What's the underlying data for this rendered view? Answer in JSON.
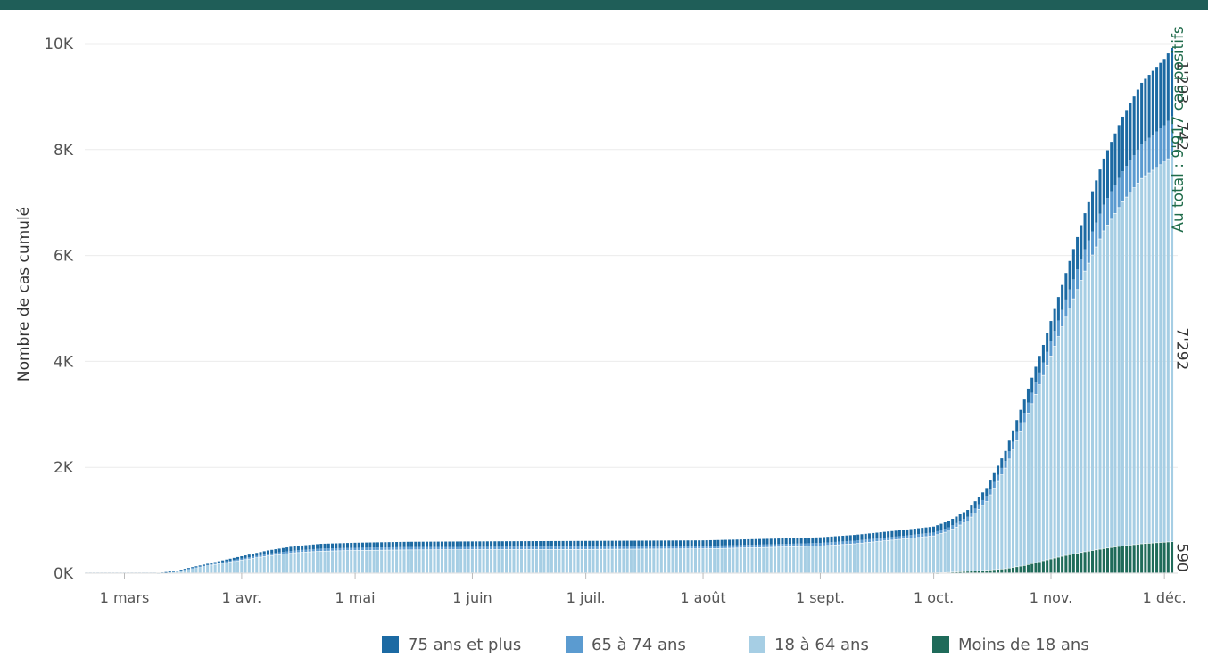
{
  "chart_data": {
    "type": "bar",
    "stacked": true,
    "ylabel": "Nombre de cas cumulé",
    "ylim": [
      0,
      10000
    ],
    "yticks": [
      0,
      2000,
      4000,
      6000,
      8000,
      10000
    ],
    "ytick_labels": [
      "0K",
      "2K",
      "4K",
      "6K",
      "8K",
      "10K"
    ],
    "x_start": "2020-02-20",
    "x_end": "2020-12-05",
    "xticks": [
      {
        "date": "2020-03-01",
        "label": "1 mars"
      },
      {
        "date": "2020-04-01",
        "label": "1 avr."
      },
      {
        "date": "2020-05-01",
        "label": "1 mai"
      },
      {
        "date": "2020-06-01",
        "label": "1 juin"
      },
      {
        "date": "2020-07-01",
        "label": "1 juil."
      },
      {
        "date": "2020-08-01",
        "label": "1 août"
      },
      {
        "date": "2020-09-01",
        "label": "1 sept."
      },
      {
        "date": "2020-10-01",
        "label": "1 oct."
      },
      {
        "date": "2020-11-01",
        "label": "1 nov."
      },
      {
        "date": "2020-12-01",
        "label": "1 déc."
      }
    ],
    "series": [
      {
        "name": "Moins de 18 ans",
        "color": "#1f6b5a",
        "key": "under18"
      },
      {
        "name": "18 à 64 ans",
        "color": "#a6cee4",
        "key": "a18_64"
      },
      {
        "name": "65 à 74 ans",
        "color": "#5b9bd0",
        "key": "a65_74"
      },
      {
        "name": "75 ans et plus",
        "color": "#1c6aa3",
        "key": "a75plus"
      }
    ],
    "anchors": [
      {
        "date": "2020-03-10",
        "under18": 0,
        "a18_64": 2,
        "a65_74": 0,
        "a75plus": 0
      },
      {
        "date": "2020-03-15",
        "under18": 0,
        "a18_64": 40,
        "a65_74": 5,
        "a75plus": 5
      },
      {
        "date": "2020-03-20",
        "under18": 0,
        "a18_64": 100,
        "a65_74": 15,
        "a75plus": 15
      },
      {
        "date": "2020-03-25",
        "under18": 0,
        "a18_64": 160,
        "a65_74": 25,
        "a75plus": 25
      },
      {
        "date": "2020-04-01",
        "under18": 0,
        "a18_64": 240,
        "a65_74": 35,
        "a75plus": 45
      },
      {
        "date": "2020-04-08",
        "under18": 0,
        "a18_64": 320,
        "a65_74": 45,
        "a75plus": 65
      },
      {
        "date": "2020-04-15",
        "under18": 0,
        "a18_64": 380,
        "a65_74": 50,
        "a75plus": 80
      },
      {
        "date": "2020-04-22",
        "under18": 0,
        "a18_64": 410,
        "a65_74": 55,
        "a75plus": 90
      },
      {
        "date": "2020-05-01",
        "under18": 0,
        "a18_64": 425,
        "a65_74": 55,
        "a75plus": 95
      },
      {
        "date": "2020-05-15",
        "under18": 0,
        "a18_64": 435,
        "a65_74": 58,
        "a75plus": 100
      },
      {
        "date": "2020-06-01",
        "under18": 0,
        "a18_64": 440,
        "a65_74": 58,
        "a75plus": 102
      },
      {
        "date": "2020-07-01",
        "under18": 0,
        "a18_64": 445,
        "a65_74": 60,
        "a75plus": 105
      },
      {
        "date": "2020-08-01",
        "under18": 0,
        "a18_64": 455,
        "a65_74": 60,
        "a75plus": 105
      },
      {
        "date": "2020-08-20",
        "under18": 0,
        "a18_64": 485,
        "a65_74": 62,
        "a75plus": 106
      },
      {
        "date": "2020-09-01",
        "under18": 0,
        "a18_64": 510,
        "a65_74": 62,
        "a75plus": 106
      },
      {
        "date": "2020-09-10",
        "under18": 0,
        "a18_64": 550,
        "a65_74": 64,
        "a75plus": 108
      },
      {
        "date": "2020-09-20",
        "under18": 0,
        "a18_64": 620,
        "a65_74": 65,
        "a75plus": 110
      },
      {
        "date": "2020-10-01",
        "under18": 0,
        "a18_64": 700,
        "a65_74": 68,
        "a75plus": 112
      },
      {
        "date": "2020-10-05",
        "under18": 10,
        "a18_64": 780,
        "a65_74": 75,
        "a75plus": 120
      },
      {
        "date": "2020-10-10",
        "under18": 30,
        "a18_64": 950,
        "a65_74": 85,
        "a75plus": 130
      },
      {
        "date": "2020-10-15",
        "under18": 50,
        "a18_64": 1300,
        "a65_74": 110,
        "a75plus": 150
      },
      {
        "date": "2020-10-20",
        "under18": 80,
        "a18_64": 1900,
        "a65_74": 140,
        "a75plus": 190
      },
      {
        "date": "2020-10-25",
        "under18": 140,
        "a18_64": 2700,
        "a65_74": 190,
        "a75plus": 250
      },
      {
        "date": "2020-10-30",
        "under18": 230,
        "a18_64": 3500,
        "a65_74": 250,
        "a75plus": 330
      },
      {
        "date": "2020-11-05",
        "under18": 330,
        "a18_64": 4500,
        "a65_74": 340,
        "a75plus": 500
      },
      {
        "date": "2020-11-10",
        "under18": 400,
        "a18_64": 5300,
        "a65_74": 420,
        "a75plus": 680
      },
      {
        "date": "2020-11-15",
        "under18": 460,
        "a18_64": 6000,
        "a65_74": 500,
        "a75plus": 870
      },
      {
        "date": "2020-11-20",
        "under18": 510,
        "a18_64": 6500,
        "a65_74": 580,
        "a75plus": 1030
      },
      {
        "date": "2020-11-25",
        "under18": 550,
        "a18_64": 6900,
        "a65_74": 650,
        "a75plus": 1160
      },
      {
        "date": "2020-12-01",
        "under18": 580,
        "a18_64": 7180,
        "a65_74": 700,
        "a75plus": 1250
      },
      {
        "date": "2020-12-03",
        "under18": 590,
        "a18_64": 7292,
        "a65_74": 742,
        "a75plus": 1293
      }
    ],
    "last_value_labels": {
      "under18": "590",
      "a18_64": "7'292",
      "a65_74": "742",
      "a75plus": "1'293"
    },
    "total_annotation": "Au total : 9'917 cas positifs",
    "total_annotation_color": "#1f6b4a",
    "legend": {
      "position": "bottom",
      "items": [
        {
          "label": "75 ans et plus",
          "color": "#1c6aa3"
        },
        {
          "label": "65 à 74 ans",
          "color": "#5b9bd0"
        },
        {
          "label": "18 à 64 ans",
          "color": "#a6cee4"
        },
        {
          "label": "Moins de 18 ans",
          "color": "#1f6b5a"
        }
      ]
    },
    "grid": true
  },
  "colors": {
    "top_bar": "#1f5e58"
  }
}
